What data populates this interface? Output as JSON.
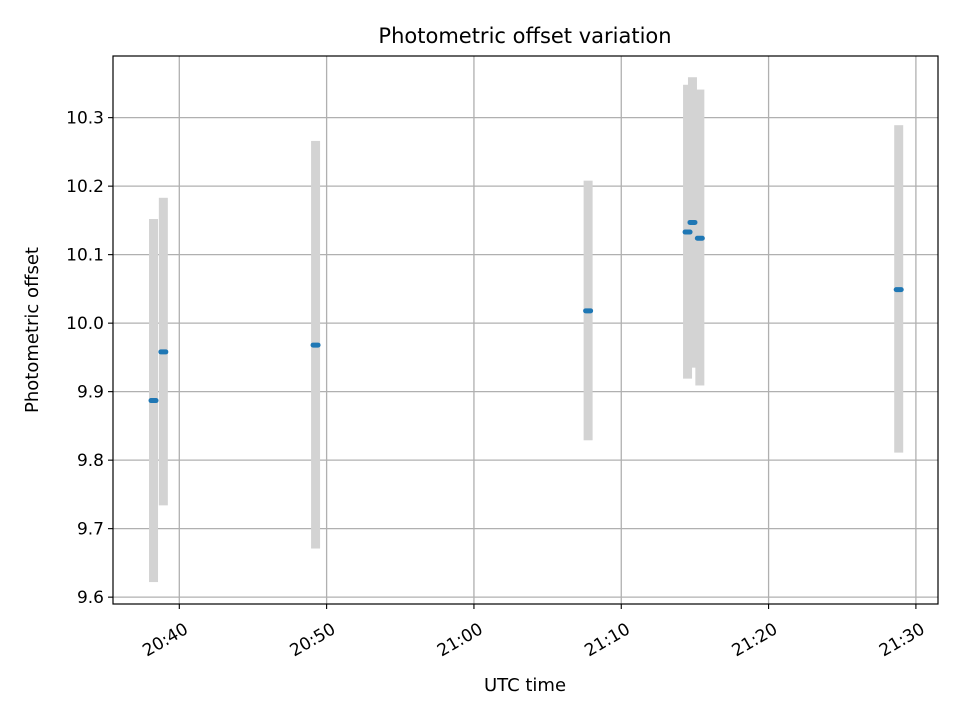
{
  "chart_data": {
    "type": "scatter",
    "title": "Photometric offset variation",
    "xlabel": "UTC time",
    "ylabel": "Photometric offset",
    "xlim": [
      "20:35:30",
      "21:31:30"
    ],
    "ylim": [
      9.59,
      10.39
    ],
    "x_ticks": [
      "20:40",
      "20:50",
      "21:00",
      "21:10",
      "21:20",
      "21:30"
    ],
    "y_ticks": [
      "9.6",
      "9.7",
      "9.8",
      "9.9",
      "10.0",
      "10.1",
      "10.2",
      "10.3"
    ],
    "grid": true,
    "series": [
      {
        "marker_color": "#1f77b4",
        "errorbar_color": "#d3d3d3",
        "points": [
          {
            "x": "20:38:15",
            "y": 9.887,
            "ylow": 9.622,
            "yhigh": 10.152
          },
          {
            "x": "20:38:55",
            "y": 9.958,
            "ylow": 9.734,
            "yhigh": 10.183
          },
          {
            "x": "20:49:15",
            "y": 9.968,
            "ylow": 9.671,
            "yhigh": 10.266
          },
          {
            "x": "21:07:45",
            "y": 10.018,
            "ylow": 9.829,
            "yhigh": 10.208
          },
          {
            "x": "21:14:30",
            "y": 10.133,
            "ylow": 9.919,
            "yhigh": 10.348
          },
          {
            "x": "21:14:50",
            "y": 10.147,
            "ylow": 9.935,
            "yhigh": 10.359
          },
          {
            "x": "21:15:20",
            "y": 10.124,
            "ylow": 9.909,
            "yhigh": 10.341
          },
          {
            "x": "21:28:50",
            "y": 10.049,
            "ylow": 9.811,
            "yhigh": 10.289
          }
        ]
      }
    ]
  }
}
